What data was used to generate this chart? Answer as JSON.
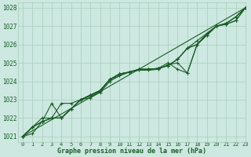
{
  "title": "Graphe pression niveau de la mer (hPa)",
  "bg_color": "#cce8e0",
  "grid_color": "#aaccbc",
  "line_color": "#1a5c28",
  "marker_color": "#1a5c28",
  "xlim": [
    -0.5,
    23
  ],
  "ylim": [
    1020.7,
    1028.3
  ],
  "xticks": [
    0,
    1,
    2,
    3,
    4,
    5,
    6,
    7,
    8,
    9,
    10,
    11,
    12,
    13,
    14,
    15,
    16,
    17,
    18,
    19,
    20,
    21,
    22,
    23
  ],
  "yticks": [
    1021,
    1022,
    1023,
    1024,
    1025,
    1026,
    1027,
    1028
  ],
  "series": [
    [
      1021.0,
      1021.5,
      1021.8,
      1022.0,
      1022.8,
      1022.8,
      1023.0,
      1023.1,
      1023.4,
      1024.0,
      1024.3,
      1024.5,
      1024.6,
      1024.6,
      1024.65,
      1024.9,
      1025.0,
      1024.45,
      1026.0,
      1026.5,
      1027.0,
      1027.1,
      1027.3,
      1028.0
    ],
    [
      1021.0,
      1021.5,
      1021.8,
      1022.0,
      1022.0,
      1022.5,
      1023.0,
      1023.2,
      1023.45,
      1024.1,
      1024.3,
      1024.5,
      1024.65,
      1024.65,
      1024.7,
      1025.0,
      1024.65,
      1024.45,
      1026.0,
      1026.5,
      1027.0,
      1027.1,
      1027.3,
      1028.0
    ],
    [
      1021.0,
      1021.5,
      1022.0,
      1022.0,
      1022.0,
      1022.5,
      1023.0,
      1023.25,
      1023.5,
      1024.1,
      1024.4,
      1024.5,
      1024.65,
      1024.65,
      1024.7,
      1024.85,
      1025.2,
      1025.8,
      1026.0,
      1026.5,
      1027.0,
      1027.15,
      1027.5,
      1028.0
    ],
    [
      1021.0,
      1021.15,
      1021.8,
      1022.8,
      1022.0,
      1022.5,
      1023.0,
      1023.25,
      1023.5,
      1024.1,
      1024.4,
      1024.5,
      1024.65,
      1024.65,
      1024.7,
      1024.85,
      1025.2,
      1025.8,
      1026.0,
      1026.6,
      1027.0,
      1027.15,
      1027.5,
      1028.0
    ],
    [
      1021.0,
      1021.5,
      1021.8,
      1022.0,
      1022.0,
      1022.5,
      1023.0,
      1023.25,
      1023.5,
      1024.1,
      1024.4,
      1024.5,
      1024.65,
      1024.65,
      1024.7,
      1024.85,
      1025.2,
      1025.8,
      1026.2,
      1026.6,
      1027.0,
      1027.15,
      1027.5,
      1028.0
    ]
  ],
  "straight_line": [
    1021.0,
    1028.0
  ]
}
